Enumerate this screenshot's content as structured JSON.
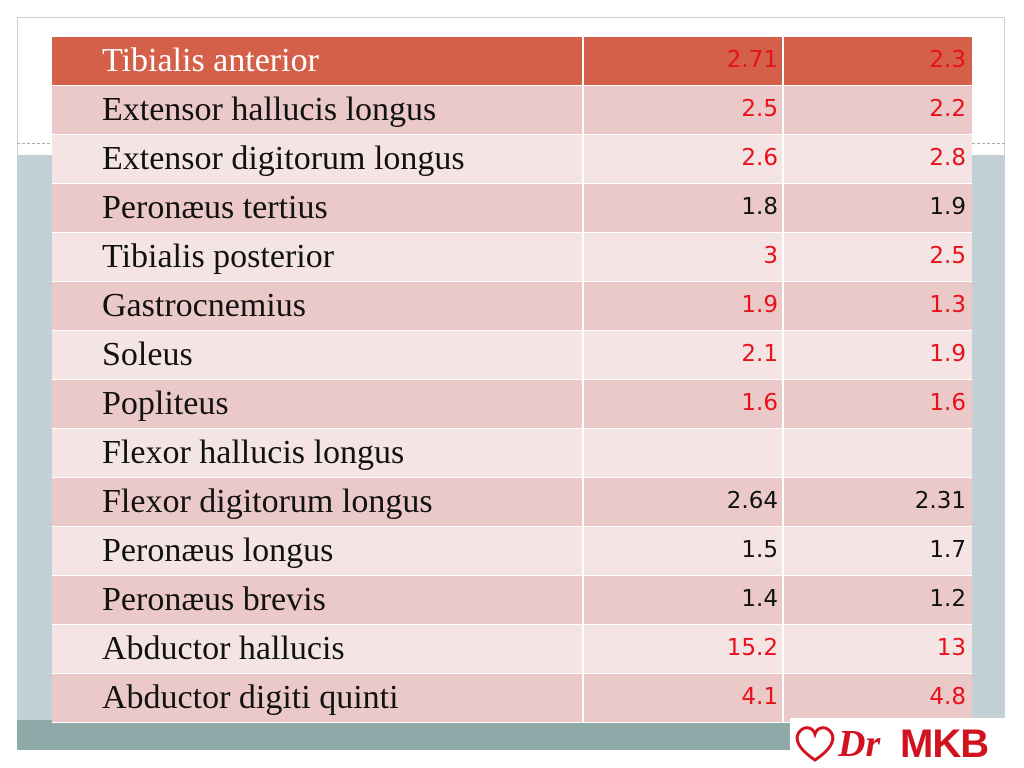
{
  "table": {
    "rows": [
      {
        "muscle": "Tibialis anterior",
        "a": "2.71",
        "b": "2.3",
        "color": "#e8101a"
      },
      {
        "muscle": "Extensor hallucis longus",
        "a": "2.5",
        "b": "2.2",
        "color": "#e8101a"
      },
      {
        "muscle": "Extensor digitorum longus",
        "a": "2.6",
        "b": "2.8",
        "color": "#e8101a"
      },
      {
        "muscle": "Peronæus tertius",
        "a": "1.8",
        "b": "1.9",
        "color": "#111111"
      },
      {
        "muscle": "Tibialis posterior",
        "a": "3",
        "b": "2.5",
        "color": "#e8101a"
      },
      {
        "muscle": "Gastrocnemius",
        "a": "1.9",
        "b": "1.3",
        "color": "#e8101a"
      },
      {
        "muscle": "Soleus",
        "a": "2.1",
        "b": "1.9",
        "color": "#e8101a"
      },
      {
        "muscle": "Popliteus",
        "a": "1.6",
        "b": "1.6",
        "color": "#e8101a"
      },
      {
        "muscle": "Flexor hallucis longus",
        "a": null,
        "b": null,
        "color": "#111111"
      },
      {
        "muscle": "Flexor digitorum longus",
        "a": "2.64",
        "b": "2.31",
        "color": "#111111"
      },
      {
        "muscle": "Peronæus longus",
        "a": "1.5",
        "b": "1.7",
        "color": "#111111"
      },
      {
        "muscle": "Peronæus brevis",
        "a": "1.4",
        "b": "1.2",
        "color": "#111111"
      },
      {
        "muscle": "Abductor hallucis",
        "a": "15.2",
        "b": "13",
        "color": "#e8101a"
      },
      {
        "muscle": "Abductor digiti quinti",
        "a": "4.1",
        "b": "4.8",
        "color": "#e8101a"
      }
    ]
  },
  "logo": {
    "prefix": "Dr",
    "name": "MKB"
  }
}
